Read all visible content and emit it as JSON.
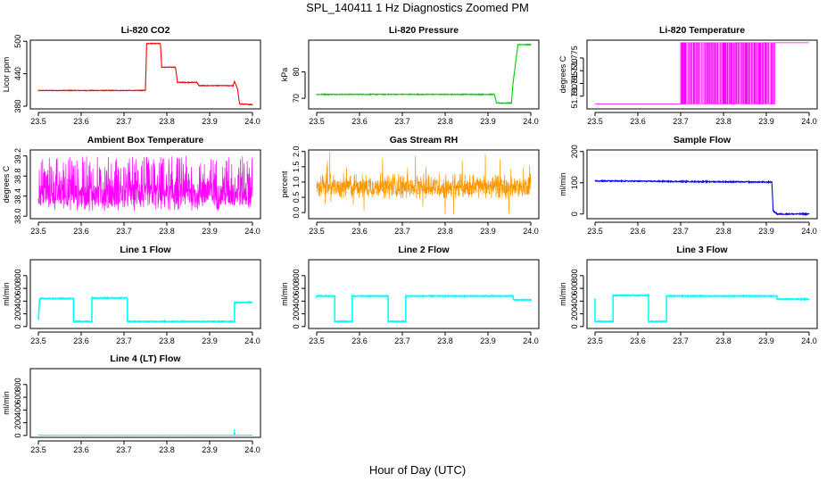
{
  "figure": {
    "title": "SPL_140411  1 Hz Diagnostics Zoomed PM",
    "xlabel": "Hour of Day (UTC)"
  },
  "chart_data": [
    {
      "type": "line",
      "title": "Li-820 CO2",
      "ylabel": "Licor ppm",
      "color": "#ff0000",
      "xlim": [
        23.5,
        24.0
      ],
      "ylim": [
        375,
        502
      ],
      "xticks": [
        "23.5",
        "23.6",
        "23.7",
        "23.8",
        "23.9",
        "24.0"
      ],
      "yticks": [
        "380",
        "440",
        "500"
      ],
      "noise": 0.6,
      "series": [
        {
          "name": "CO2",
          "x": [
            23.5,
            23.75,
            23.753,
            23.785,
            23.788,
            23.82,
            23.825,
            23.87,
            23.875,
            23.955,
            23.958,
            23.965,
            23.97,
            24.0
          ],
          "y": [
            409,
            409,
            496,
            496,
            452,
            452,
            424,
            424,
            418,
            418,
            426,
            412,
            384,
            383
          ]
        }
      ]
    },
    {
      "type": "line",
      "title": "Li-820 Pressure",
      "ylabel": "kPa",
      "color": "#00cc00",
      "xlim": [
        23.5,
        24.0
      ],
      "ylim": [
        66,
        92
      ],
      "xticks": [
        "23.5",
        "23.6",
        "23.7",
        "23.8",
        "23.9",
        "24.0"
      ],
      "yticks": [
        "70",
        "80"
      ],
      "noise": 0.15,
      "series": [
        {
          "name": "Pressure",
          "x": [
            23.5,
            23.915,
            23.92,
            23.955,
            23.958,
            23.965,
            23.97,
            24.0
          ],
          "y": [
            71.5,
            71.5,
            68.2,
            68.2,
            75,
            84,
            90.3,
            90.3
          ]
        }
      ]
    },
    {
      "type": "line",
      "title": "Li-820 Temperature",
      "ylabel": "degrees C",
      "color": "#ff00ff",
      "xlim": [
        23.5,
        24.0
      ],
      "ylim": [
        51.755,
        51.782
      ],
      "xticks": [
        "23.5",
        "23.6",
        "23.7",
        "23.8",
        "23.9",
        "24.0"
      ],
      "yticks": [
        "51.760",
        "51.765",
        "51.770",
        "51.775"
      ],
      "toggle": {
        "x0": 23.7,
        "x1": 23.92,
        "low": 51.757,
        "high": 51.781
      },
      "series": [
        {
          "name": "Temperature",
          "x": [
            23.5,
            23.7,
            23.7,
            23.92,
            23.92,
            24.0
          ],
          "y": [
            51.757,
            51.757,
            51.781,
            51.781,
            51.781,
            51.781
          ]
        }
      ]
    },
    {
      "type": "line",
      "title": "Ambient Box Temperature",
      "ylabel": "degrees C",
      "color": "#ff00ff",
      "xlim": [
        23.5,
        24.0
      ],
      "ylim": [
        37.95,
        39.32
      ],
      "xticks": [
        "23.5",
        "23.6",
        "23.7",
        "23.8",
        "23.9",
        "24.0"
      ],
      "yticks": [
        "38.0",
        "38.4",
        "38.8",
        "39.2"
      ],
      "band": {
        "low": 38.1,
        "high": 39.2,
        "dense_low": 38.2,
        "dense_high": 38.65
      },
      "series": [
        {
          "name": "Box temperature",
          "x": [
            23.5,
            24.0
          ],
          "y": [
            38.45,
            38.45
          ]
        }
      ]
    },
    {
      "type": "line",
      "title": "Gas Stream RH",
      "ylabel": "percent",
      "color": "#ff9900",
      "color2": "#996600",
      "xlim": [
        23.5,
        24.0
      ],
      "ylim": [
        -0.2,
        2.05
      ],
      "xticks": [
        "23.5",
        "23.6",
        "23.7",
        "23.8",
        "23.9",
        "24.0"
      ],
      "yticks": [
        "0.0",
        "0.5",
        "1.0",
        "1.5",
        "2.0"
      ],
      "band": {
        "low": 0.45,
        "high": 1.3,
        "dense_low": 0.6,
        "dense_high": 1.05,
        "spike_high": 2.0,
        "spike_low": -0.1
      },
      "series": [
        {
          "name": "RH",
          "x": [
            23.5,
            24.0
          ],
          "y": [
            0.85,
            0.85
          ]
        }
      ]
    },
    {
      "type": "line",
      "title": "Sample Flow",
      "ylabel": "ml/min",
      "color": "#0000ff",
      "xlim": [
        23.5,
        24.0
      ],
      "ylim": [
        -15,
        205
      ],
      "xticks": [
        "23.5",
        "23.6",
        "23.7",
        "23.8",
        "23.9",
        "24.0"
      ],
      "yticks": [
        "0",
        "100",
        "200"
      ],
      "noise": 1.8,
      "series": [
        {
          "name": "Sample flow",
          "x": [
            23.5,
            23.913,
            23.916,
            23.925,
            24.0
          ],
          "y": [
            106,
            102,
            10,
            0,
            0
          ]
        }
      ]
    },
    {
      "type": "line",
      "title": "Line 1 Flow",
      "ylabel": "ml/min",
      "color": "#00ffff",
      "xlim": [
        23.5,
        24.0
      ],
      "ylim": [
        -30,
        1050
      ],
      "xticks": [
        "23.5",
        "23.6",
        "23.7",
        "23.8",
        "23.9",
        "24.0"
      ],
      "yticks": [
        "0",
        "200",
        "400",
        "600",
        "800"
      ],
      "noise": 6,
      "series": [
        {
          "name": "Line 1",
          "x": [
            23.5,
            23.503,
            23.582,
            23.582,
            23.625,
            23.625,
            23.708,
            23.708,
            23.958,
            23.958,
            24.0
          ],
          "y": [
            100,
            440,
            440,
            80,
            80,
            450,
            450,
            80,
            80,
            380,
            380
          ]
        }
      ]
    },
    {
      "type": "line",
      "title": "Line 2 Flow",
      "ylabel": "ml/min",
      "color": "#00ffff",
      "xlim": [
        23.5,
        24.0
      ],
      "ylim": [
        -30,
        1050
      ],
      "xticks": [
        "23.5",
        "23.6",
        "23.7",
        "23.8",
        "23.9",
        "24.0"
      ],
      "yticks": [
        "0",
        "200",
        "400",
        "600",
        "800"
      ],
      "noise": 6,
      "series": [
        {
          "name": "Line 2",
          "x": [
            23.5,
            23.542,
            23.542,
            23.583,
            23.583,
            23.667,
            23.667,
            23.708,
            23.708,
            23.958,
            23.96,
            24.0
          ],
          "y": [
            480,
            480,
            80,
            80,
            480,
            480,
            80,
            80,
            480,
            480,
            420,
            420
          ]
        }
      ]
    },
    {
      "type": "line",
      "title": "Line 3 Flow",
      "ylabel": "ml/min",
      "color": "#00ffff",
      "xlim": [
        23.5,
        24.0
      ],
      "ylim": [
        -30,
        1050
      ],
      "xticks": [
        "23.5",
        "23.6",
        "23.7",
        "23.8",
        "23.9",
        "24.0"
      ],
      "yticks": [
        "0",
        "200",
        "400",
        "600",
        "800"
      ],
      "noise": 6,
      "series": [
        {
          "name": "Line 3",
          "x": [
            23.5,
            23.5,
            23.5,
            23.542,
            23.542,
            23.625,
            23.625,
            23.667,
            23.667,
            23.925,
            23.925,
            24.0
          ],
          "y": [
            120,
            440,
            80,
            80,
            490,
            490,
            80,
            80,
            480,
            480,
            430,
            430
          ]
        }
      ]
    },
    {
      "type": "line",
      "title": "Line 4 (LT) Flow",
      "ylabel": "ml/min",
      "color": "#00ffff",
      "xlim": [
        23.5,
        24.0
      ],
      "ylim": [
        -30,
        1050
      ],
      "xticks": [
        "23.5",
        "23.6",
        "23.7",
        "23.8",
        "23.9",
        "24.0"
      ],
      "yticks": [
        "0",
        "200",
        "400",
        "600",
        "800"
      ],
      "noise": 1.5,
      "series": [
        {
          "name": "Line 4",
          "x": [
            23.5,
            23.957,
            23.958,
            23.959,
            23.96,
            24.0
          ],
          "y": [
            5,
            5,
            100,
            5,
            5,
            5
          ]
        }
      ]
    }
  ]
}
